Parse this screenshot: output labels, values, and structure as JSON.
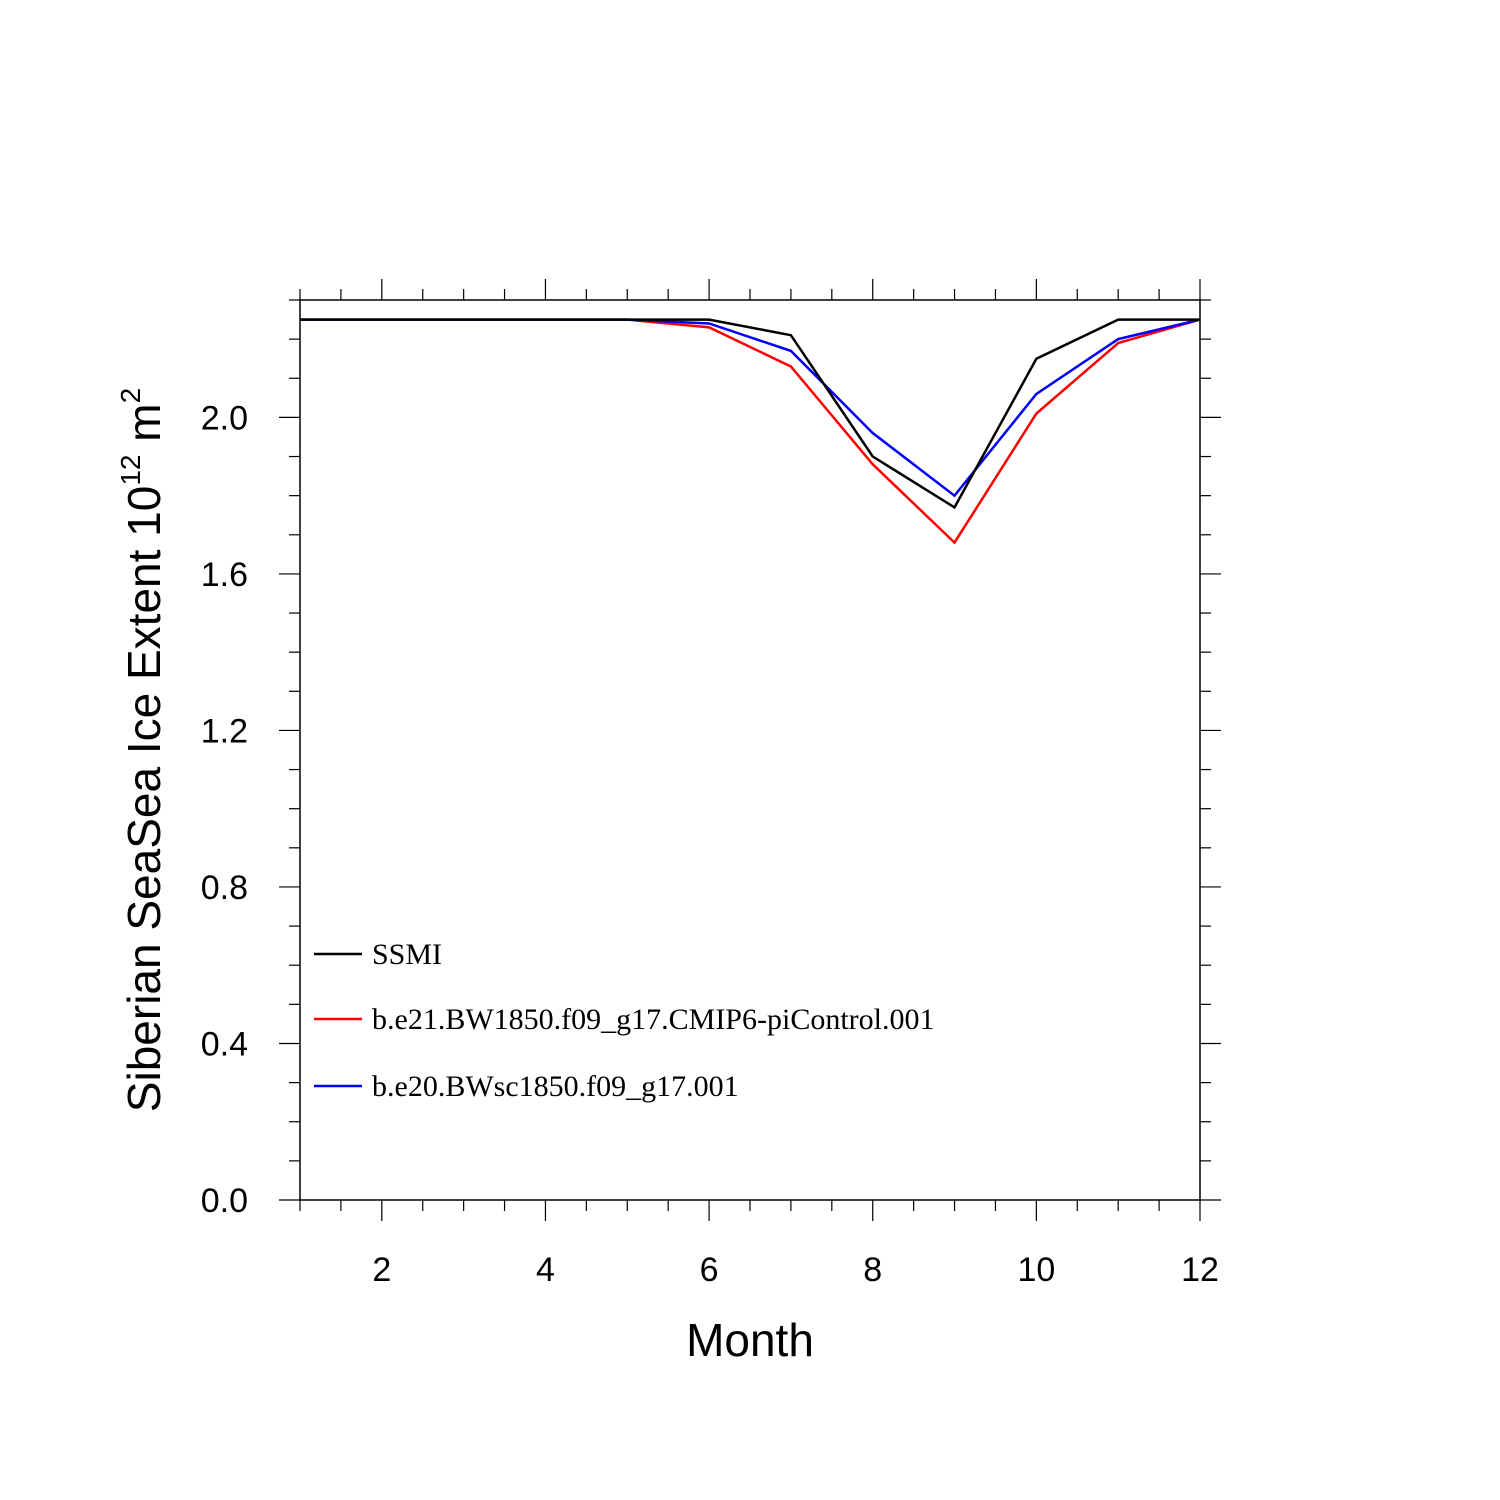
{
  "chart_data": {
    "type": "line",
    "title": "",
    "xlabel": "Month",
    "ylabel": {
      "main": "Siberian SeaSea Ice Extent 10",
      "sup1": "12",
      "unit": " m",
      "sup2": "2"
    },
    "xlim": [
      1,
      12
    ],
    "ylim": [
      0,
      2.3
    ],
    "x_ticks": [
      2,
      4,
      6,
      8,
      10,
      12
    ],
    "x_tick_labels": [
      "2",
      "4",
      "6",
      "8",
      "10",
      "12"
    ],
    "y_ticks": [
      0,
      0.4,
      0.8,
      1.2,
      1.6,
      2.0
    ],
    "y_tick_labels": [
      "0.0",
      "0.4",
      "0.8",
      "1.2",
      "1.6",
      "2.0"
    ],
    "x": [
      1,
      2,
      3,
      4,
      5,
      6,
      7,
      8,
      9,
      10,
      11,
      12
    ],
    "series": [
      {
        "name": "SSMI",
        "color": "#000000",
        "values": [
          2.25,
          2.25,
          2.25,
          2.25,
          2.25,
          2.25,
          2.21,
          1.9,
          1.77,
          2.15,
          2.25,
          2.25
        ]
      },
      {
        "name": "b.e21.BW1850.f09_g17.CMIP6-piControl.001",
        "color": "#ff0000",
        "values": [
          2.25,
          2.25,
          2.25,
          2.25,
          2.25,
          2.23,
          2.13,
          1.88,
          1.68,
          2.01,
          2.19,
          2.25
        ]
      },
      {
        "name": "b.e20.BWsc1850.f09_g17.001",
        "color": "#0000ff",
        "values": [
          2.25,
          2.25,
          2.25,
          2.25,
          2.25,
          2.24,
          2.17,
          1.96,
          1.8,
          2.06,
          2.2,
          2.25
        ]
      }
    ],
    "legend_position": "lower-left",
    "grid": false
  }
}
